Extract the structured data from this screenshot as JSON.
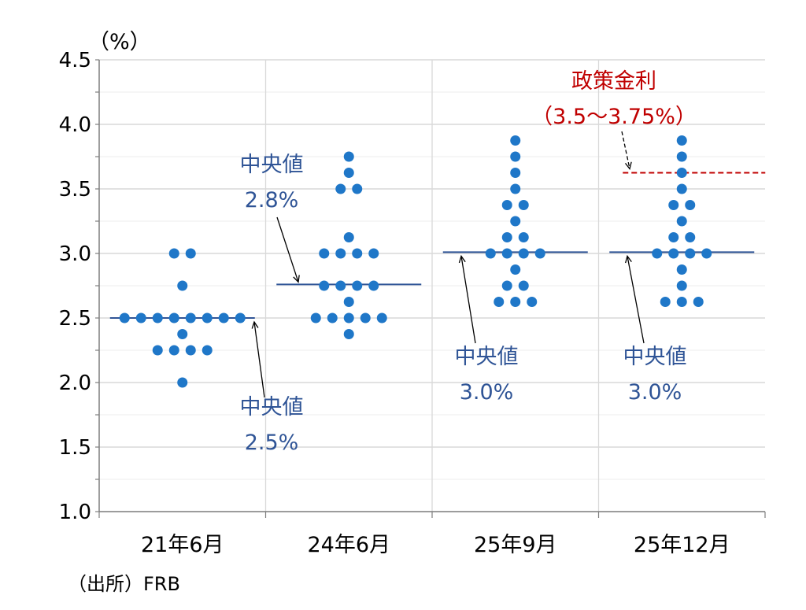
{
  "chart_data": {
    "type": "scatter",
    "unit_label": "（%）",
    "source": "（出所）FRB",
    "ylim": [
      1.0,
      4.5
    ],
    "yticks": [
      "1.0",
      "1.5",
      "2.0",
      "2.5",
      "3.0",
      "3.5",
      "4.0",
      "4.5"
    ],
    "categories": [
      "21年6月",
      "24年6月",
      "25年9月",
      "25年12月"
    ],
    "dot_color": "#1f77c8",
    "median_color": "#2f5496",
    "policy_color": "#c00000",
    "dots": [
      {
        "category": "21年6月",
        "points": [
          {
            "y": 3.0,
            "count": 2
          },
          {
            "y": 2.75,
            "count": 1
          },
          {
            "y": 2.5,
            "count": 8
          },
          {
            "y": 2.375,
            "count": 1
          },
          {
            "y": 2.25,
            "count": 4
          },
          {
            "y": 2.0,
            "count": 1
          }
        ]
      },
      {
        "category": "24年6月",
        "points": [
          {
            "y": 3.75,
            "count": 1
          },
          {
            "y": 3.625,
            "count": 1
          },
          {
            "y": 3.5,
            "count": 2
          },
          {
            "y": 3.125,
            "count": 1
          },
          {
            "y": 3.0,
            "count": 4
          },
          {
            "y": 2.75,
            "count": 4
          },
          {
            "y": 2.625,
            "count": 1
          },
          {
            "y": 2.5,
            "count": 5
          },
          {
            "y": 2.375,
            "count": 1
          }
        ]
      },
      {
        "category": "25年9月",
        "points": [
          {
            "y": 3.875,
            "count": 1
          },
          {
            "y": 3.75,
            "count": 1
          },
          {
            "y": 3.625,
            "count": 1
          },
          {
            "y": 3.5,
            "count": 1
          },
          {
            "y": 3.375,
            "count": 2
          },
          {
            "y": 3.25,
            "count": 1
          },
          {
            "y": 3.125,
            "count": 2
          },
          {
            "y": 3.0,
            "count": 4
          },
          {
            "y": 2.875,
            "count": 1
          },
          {
            "y": 2.75,
            "count": 2
          },
          {
            "y": 2.625,
            "count": 3
          }
        ]
      },
      {
        "category": "25年12月",
        "points": [
          {
            "y": 3.875,
            "count": 1
          },
          {
            "y": 3.75,
            "count": 1
          },
          {
            "y": 3.625,
            "count": 1
          },
          {
            "y": 3.5,
            "count": 1
          },
          {
            "y": 3.375,
            "count": 2
          },
          {
            "y": 3.25,
            "count": 1
          },
          {
            "y": 3.125,
            "count": 2
          },
          {
            "y": 3.0,
            "count": 4
          },
          {
            "y": 2.875,
            "count": 1
          },
          {
            "y": 2.75,
            "count": 1
          },
          {
            "y": 2.625,
            "count": 3
          }
        ]
      }
    ],
    "medians": [
      {
        "category": "21年6月",
        "value": 2.5,
        "label_top": "中央値",
        "label_bottom": "2.5%"
      },
      {
        "category": "24年6月",
        "value": 2.76,
        "label_top": "中央値",
        "label_bottom": "2.8%"
      },
      {
        "category": "25年9月",
        "value": 3.01,
        "label_top": "中央値",
        "label_bottom": "3.0%"
      },
      {
        "category": "25年12月",
        "value": 3.01,
        "label_top": "中央値",
        "label_bottom": "3.0%"
      }
    ],
    "policy_rate": {
      "category": "25年12月",
      "low": 3.5,
      "high": 3.75,
      "value": 3.625,
      "label_top": "政策金利",
      "label_bottom": "（3.5～3.75%）"
    }
  }
}
